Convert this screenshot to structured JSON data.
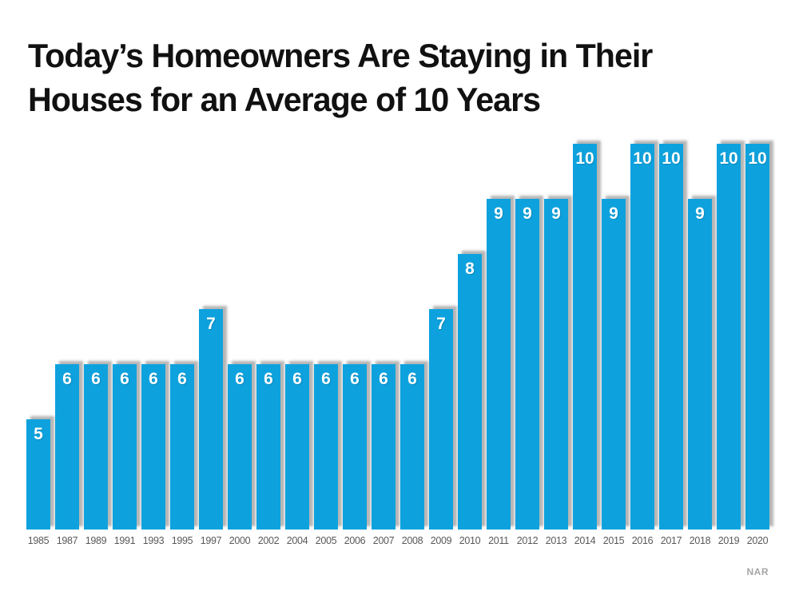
{
  "title": {
    "line1": "Today’s Homeowners Are Staying in Their",
    "line2": "Houses for an Average of 10 Years",
    "full": "Today’s Homeowners Are Staying in Their Houses for an Average of 10 Years"
  },
  "source": "NAR",
  "colors": {
    "bar": "#0da2de",
    "title": "#111111",
    "axis_label": "#595959",
    "value_label": "#ffffff",
    "source": "#a6a6a6",
    "background": "#ffffff"
  },
  "chart_data": {
    "type": "bar",
    "title": "Today’s Homeowners Are Staying in Their Houses for an Average of 10 Years",
    "categories": [
      "1985",
      "1987",
      "1989",
      "1991",
      "1993",
      "1995",
      "1997",
      "2000",
      "2002",
      "2004",
      "2005",
      "2006",
      "2007",
      "2008",
      "2009",
      "2010",
      "2011",
      "2012",
      "2013",
      "2014",
      "2015",
      "2016",
      "2017",
      "2018",
      "2019",
      "2020"
    ],
    "values": [
      5,
      6,
      6,
      6,
      6,
      6,
      7,
      6,
      6,
      6,
      6,
      6,
      6,
      6,
      7,
      8,
      9,
      9,
      9,
      10,
      9,
      10,
      10,
      9,
      10,
      10
    ],
    "xlabel": "",
    "ylabel": "",
    "ylim": [
      3,
      10
    ],
    "grid": false,
    "legend": false,
    "value_labels_shown": true,
    "y_axis_shown": false,
    "source": "NAR"
  }
}
